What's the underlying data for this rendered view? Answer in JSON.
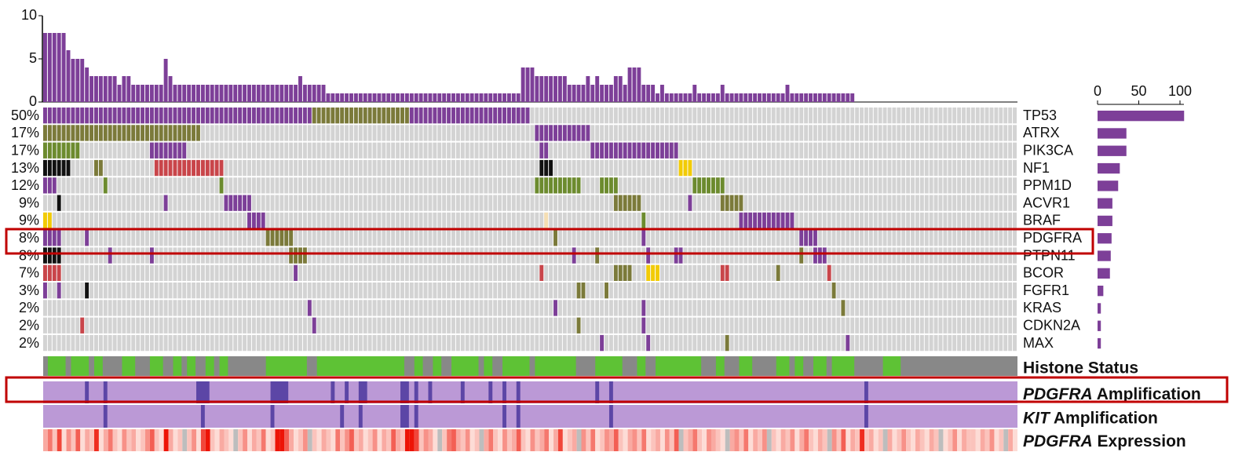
{
  "chart_data": {
    "type": "oncoprint",
    "count_ylim": [
      0,
      10
    ],
    "count_yticks": [
      0,
      5,
      10
    ],
    "count_color": "#7d3f98",
    "mutation_counts": [
      8,
      8,
      8,
      8,
      8,
      6,
      5,
      5,
      5,
      4,
      3,
      3,
      3,
      3,
      3,
      3,
      2,
      3,
      3,
      2,
      2,
      2,
      2,
      2,
      2,
      2,
      5,
      3,
      2,
      2,
      2,
      2,
      2,
      2,
      2,
      2,
      2,
      2,
      2,
      2,
      2,
      2,
      2,
      2,
      2,
      2,
      2,
      2,
      2,
      2,
      2,
      2,
      2,
      2,
      2,
      3,
      2,
      2,
      2,
      2,
      2,
      1,
      1,
      1,
      1,
      1,
      1,
      1,
      1,
      1,
      1,
      1,
      1,
      1,
      1,
      1,
      1,
      1,
      1,
      1,
      1,
      1,
      1,
      1,
      1,
      1,
      1,
      1,
      1,
      1,
      1,
      1,
      1,
      1,
      1,
      1,
      1,
      1,
      1,
      1,
      1,
      1,
      1,
      4,
      4,
      4,
      3,
      3,
      3,
      3,
      3,
      3,
      3,
      2,
      2,
      2,
      2,
      3,
      2,
      3,
      2,
      2,
      2,
      3,
      3,
      2,
      4,
      4,
      4,
      2,
      2,
      2,
      1,
      2,
      1,
      1,
      1,
      1,
      1,
      1,
      2,
      1,
      1,
      1,
      1,
      1,
      2,
      1,
      1,
      1,
      1,
      1,
      1,
      1,
      1,
      1,
      1,
      1,
      1,
      1,
      2,
      1,
      1,
      1,
      1,
      1,
      1,
      1,
      1,
      1,
      1,
      1,
      1,
      1,
      1,
      0,
      0,
      0,
      0,
      0,
      0,
      0,
      0,
      0,
      0,
      0,
      0,
      0,
      0,
      0,
      0,
      0,
      0,
      0,
      0,
      0,
      0,
      0,
      0,
      0,
      0,
      0,
      0,
      0,
      0,
      0,
      0,
      0,
      0,
      0
    ],
    "freq_xlim": [
      0,
      100
    ],
    "freq_xticks": [
      0,
      50,
      100
    ],
    "genes": [
      {
        "name": "TP53",
        "pct": "50%",
        "count": 105,
        "altered": [
          [
            0,
            57,
            "#7d3f98"
          ],
          [
            58,
            78,
            "#7b7a3a"
          ],
          [
            79,
            104,
            "#7d3f98"
          ]
        ]
      },
      {
        "name": "ATRX",
        "pct": "17%",
        "count": 35,
        "altered": [
          [
            0,
            33,
            "#7b7a3a"
          ],
          [
            106,
            117,
            "#7d3f98"
          ]
        ]
      },
      {
        "name": "PIK3CA",
        "pct": "17%",
        "count": 35,
        "altered": [
          [
            0,
            7,
            "#6c8b2e"
          ],
          [
            23,
            30,
            "#7d3f98"
          ],
          [
            107,
            108,
            "#7d3f98"
          ],
          [
            118,
            136,
            "#7d3f98"
          ]
        ]
      },
      {
        "name": "NF1",
        "pct": "13%",
        "count": 27,
        "altered": [
          [
            0,
            5,
            "#111111"
          ],
          [
            11,
            12,
            "#7b7a3a"
          ],
          [
            24,
            38,
            "#c9454a"
          ],
          [
            107,
            109,
            "#111111"
          ],
          [
            137,
            139,
            "#f2cb05"
          ]
        ]
      },
      {
        "name": "PPM1D",
        "pct": "12%",
        "count": 25,
        "altered": [
          [
            0,
            2,
            "#7d3f98"
          ],
          [
            13,
            13,
            "#6c8b2e"
          ],
          [
            38,
            38,
            "#6c8b2e"
          ],
          [
            106,
            115,
            "#6c8b2e"
          ],
          [
            120,
            123,
            "#6c8b2e"
          ],
          [
            140,
            146,
            "#6c8b2e"
          ]
        ]
      },
      {
        "name": "ACVR1",
        "pct": "9%",
        "count": 18,
        "altered": [
          [
            3,
            3,
            "#111111"
          ],
          [
            26,
            26,
            "#7d3f98"
          ],
          [
            39,
            44,
            "#7d3f98"
          ],
          [
            123,
            128,
            "#7b7a3a"
          ],
          [
            139,
            139,
            "#7d3f98"
          ],
          [
            146,
            150,
            "#7b7a3a"
          ]
        ]
      },
      {
        "name": "BRAF",
        "pct": "9%",
        "count": 18,
        "altered": [
          [
            0,
            1,
            "#f2cb05"
          ],
          [
            44,
            47,
            "#7d3f98"
          ],
          [
            108,
            108,
            "#f5deb3"
          ],
          [
            129,
            129,
            "#6c8b2e"
          ],
          [
            150,
            161,
            "#7d3f98"
          ]
        ]
      },
      {
        "name": "PDGFRA",
        "pct": "8%",
        "count": 17,
        "altered": [
          [
            0,
            3,
            "#7d3f98"
          ],
          [
            9,
            9,
            "#7d3f98"
          ],
          [
            48,
            53,
            "#7b7a3a"
          ],
          [
            110,
            110,
            "#7b7a3a"
          ],
          [
            129,
            129,
            "#7d3f98"
          ],
          [
            163,
            166,
            "#7d3f98"
          ]
        ]
      },
      {
        "name": "PTPN11",
        "pct": "8%",
        "count": 16,
        "altered": [
          [
            0,
            3,
            "#111111"
          ],
          [
            14,
            14,
            "#7d3f98"
          ],
          [
            23,
            23,
            "#7d3f98"
          ],
          [
            53,
            56,
            "#7b7a3a"
          ],
          [
            114,
            114,
            "#7d3f98"
          ],
          [
            119,
            119,
            "#7b7a3a"
          ],
          [
            130,
            130,
            "#7d3f98"
          ],
          [
            136,
            137,
            "#7d3f98"
          ],
          [
            163,
            163,
            "#7b7a3a"
          ],
          [
            166,
            168,
            "#7d3f98"
          ]
        ]
      },
      {
        "name": "BCOR",
        "pct": "7%",
        "count": 15,
        "altered": [
          [
            0,
            3,
            "#c9454a"
          ],
          [
            54,
            54,
            "#7d3f98"
          ],
          [
            107,
            107,
            "#c9454a"
          ],
          [
            123,
            126,
            "#7b7a3a"
          ],
          [
            130,
            132,
            "#f2cb05"
          ],
          [
            146,
            147,
            "#c9454a"
          ],
          [
            158,
            158,
            "#7b7a3a"
          ],
          [
            169,
            169,
            "#c9454a"
          ]
        ]
      },
      {
        "name": "FGFR1",
        "pct": "3%",
        "count": 7,
        "altered": [
          [
            0,
            0,
            "#7d3f98"
          ],
          [
            3,
            3,
            "#7d3f98"
          ],
          [
            9,
            9,
            "#111111"
          ],
          [
            115,
            116,
            "#7b7a3a"
          ],
          [
            121,
            121,
            "#7b7a3a"
          ],
          [
            170,
            170,
            "#7b7a3a"
          ]
        ]
      },
      {
        "name": "KRAS",
        "pct": "2%",
        "count": 4,
        "altered": [
          [
            57,
            57,
            "#7d3f98"
          ],
          [
            110,
            110,
            "#7d3f98"
          ],
          [
            129,
            129,
            "#7d3f98"
          ],
          [
            172,
            172,
            "#7b7a3a"
          ]
        ]
      },
      {
        "name": "CDKN2A",
        "pct": "2%",
        "count": 4,
        "altered": [
          [
            8,
            8,
            "#c9454a"
          ],
          [
            58,
            58,
            "#7d3f98"
          ],
          [
            115,
            115,
            "#7b7a3a"
          ],
          [
            129,
            129,
            "#7d3f98"
          ]
        ]
      },
      {
        "name": "MAX",
        "pct": "2%",
        "count": 4,
        "altered": [
          [
            120,
            120,
            "#7d3f98"
          ],
          [
            130,
            130,
            "#7d3f98"
          ],
          [
            147,
            147,
            "#7b7a3a"
          ],
          [
            173,
            173,
            "#7d3f98"
          ]
        ]
      }
    ],
    "tracks": [
      {
        "label": "Histone Status",
        "italic": null,
        "bg": "#888888",
        "color": "#5ec235",
        "ranges": [
          [
            1,
            4
          ],
          [
            6,
            9
          ],
          [
            11,
            12
          ],
          [
            17,
            19
          ],
          [
            23,
            25
          ],
          [
            28,
            29
          ],
          [
            31,
            32
          ],
          [
            35,
            36
          ],
          [
            38,
            39
          ],
          [
            48,
            56
          ],
          [
            59,
            77
          ],
          [
            80,
            81
          ],
          [
            84,
            85
          ],
          [
            88,
            93
          ],
          [
            95,
            96
          ],
          [
            99,
            104
          ],
          [
            106,
            114
          ],
          [
            119,
            124
          ],
          [
            128,
            129
          ],
          [
            132,
            141
          ],
          [
            145,
            146
          ],
          [
            150,
            152
          ],
          [
            158,
            160
          ],
          [
            162,
            163
          ],
          [
            166,
            168
          ],
          [
            170,
            174
          ],
          [
            181,
            184
          ]
        ]
      },
      {
        "label": "Amplification",
        "italic": "PDGFRA",
        "bg": "#bb99d6",
        "color": "#5c46a6",
        "ranges": [
          [
            9,
            9
          ],
          [
            13,
            13
          ],
          [
            33,
            35
          ],
          [
            49,
            52
          ],
          [
            62,
            62
          ],
          [
            65,
            65
          ],
          [
            68,
            69
          ],
          [
            77,
            78
          ],
          [
            80,
            80
          ],
          [
            83,
            83
          ],
          [
            90,
            90
          ],
          [
            96,
            96
          ],
          [
            99,
            99
          ],
          [
            102,
            102
          ],
          [
            119,
            119
          ],
          [
            122,
            122
          ],
          [
            177,
            177
          ]
        ]
      },
      {
        "label": "Amplification",
        "italic": "KIT",
        "bg": "#bb99d6",
        "color": "#5c46a6",
        "ranges": [
          [
            13,
            13
          ],
          [
            34,
            34
          ],
          [
            49,
            49
          ],
          [
            64,
            64
          ],
          [
            68,
            68
          ],
          [
            77,
            78
          ],
          [
            80,
            80
          ],
          [
            99,
            99
          ],
          [
            102,
            102
          ],
          [
            122,
            122
          ],
          [
            177,
            177
          ]
        ]
      }
    ],
    "expression_label": "Expression",
    "expression_italic": "PDGFRA",
    "expression": [
      3,
      5,
      2,
      7,
      1,
      4,
      2,
      6,
      1,
      3,
      2,
      8,
      1,
      3,
      5,
      2,
      1,
      4,
      2,
      3,
      1,
      2,
      4,
      6,
      2,
      1,
      9,
      3,
      1,
      2,
      null,
      2,
      4,
      1,
      7,
      9,
      2,
      1,
      3,
      2,
      1,
      null,
      2,
      4,
      1,
      3,
      2,
      5,
      1,
      2,
      9,
      9,
      6,
      3,
      1,
      2,
      4,
      null,
      2,
      1,
      3,
      2,
      1,
      5,
      2,
      4,
      6,
      2,
      3,
      1,
      2,
      4,
      1,
      3,
      2,
      6,
      3,
      2,
      9,
      9,
      7,
      2,
      4,
      3,
      1,
      null,
      2,
      5,
      6,
      3,
      2,
      4,
      1,
      2,
      null,
      3,
      5,
      2,
      1,
      4,
      2,
      3,
      6,
      2,
      1,
      4,
      2,
      3,
      5,
      1,
      3,
      7,
      1,
      2,
      3,
      null,
      4,
      2,
      5,
      1,
      2,
      4,
      3,
      6,
      2,
      1,
      3,
      4,
      2,
      5,
      1,
      2,
      3,
      1,
      4,
      2,
      6,
      null,
      2,
      3,
      5,
      2,
      1,
      4,
      3,
      2,
      1,
      null,
      3,
      4,
      2,
      5,
      1,
      3,
      2,
      4,
      null,
      2,
      1,
      3,
      2,
      4,
      1,
      3,
      5,
      2,
      1,
      3,
      2,
      null,
      4,
      2,
      6,
      1,
      3,
      2,
      8,
      2,
      3,
      1,
      2,
      null,
      3,
      1,
      2,
      4,
      2,
      1,
      3,
      2,
      1,
      3,
      2,
      null,
      1,
      2,
      4,
      1,
      3,
      2,
      2,
      1,
      3,
      2,
      4,
      1,
      2,
      null,
      3,
      1
    ]
  }
}
